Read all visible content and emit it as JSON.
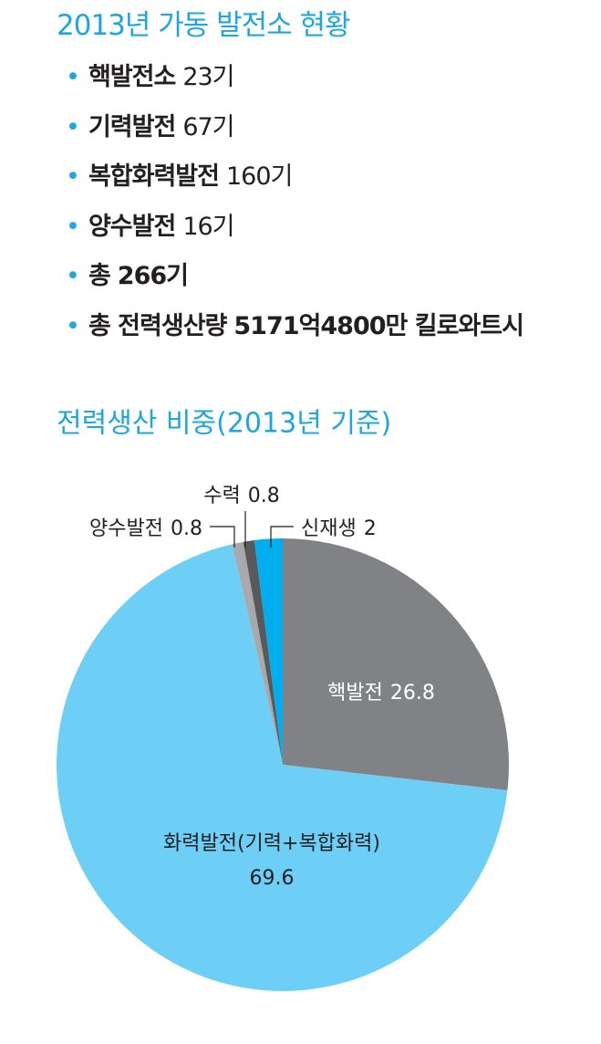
{
  "list": {
    "title": "2013년 가동 발전소 현황",
    "items": [
      {
        "label": "핵발전소",
        "value": "23기"
      },
      {
        "label": "기력발전",
        "value": "67기"
      },
      {
        "label": "복합화력발전",
        "value": "160기"
      },
      {
        "label": "양수발전",
        "value": "16기"
      },
      {
        "label": "총",
        "value": "266기"
      },
      {
        "label": "총 전력생산량",
        "value": "5171억4800만 킬로와트시"
      }
    ]
  },
  "chart_data": {
    "type": "pie",
    "title": "전력생산 비중(2013년 기준)",
    "categories": [
      "핵발전",
      "화력발전(기력+복합화력)",
      "양수발전",
      "수력",
      "신재생"
    ],
    "values": [
      26.8,
      69.6,
      0.8,
      0.8,
      2
    ],
    "colors": [
      "#808285",
      "#6dcff6",
      "#a7a9ac",
      "#58595b",
      "#00aeef"
    ]
  }
}
